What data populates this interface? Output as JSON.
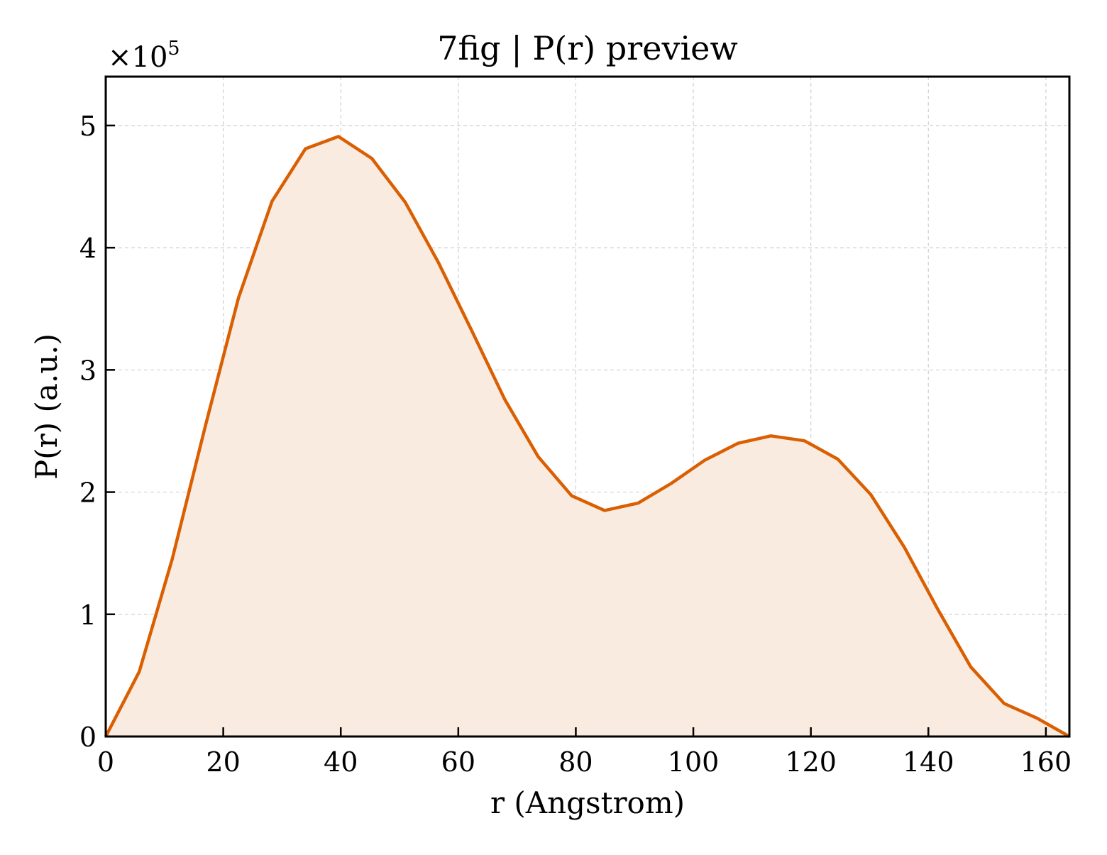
{
  "chart_data": {
    "type": "area",
    "title": "7fig | P(r) preview",
    "xlabel": "r (Angstrom)",
    "ylabel": "P(r) (a.u.)",
    "y_multiplier": "×10",
    "y_multiplier_exp": "5",
    "xlim": [
      0,
      164
    ],
    "ylim": [
      0,
      5.4
    ],
    "grid": true,
    "legend": "none",
    "xticks": [
      0,
      20,
      40,
      60,
      80,
      100,
      120,
      140,
      160
    ],
    "xtick_labels": [
      "0",
      "20",
      "40",
      "60",
      "80",
      "100",
      "120",
      "140",
      "160"
    ],
    "yticks": [
      0,
      1,
      2,
      3,
      4,
      5
    ],
    "ytick_labels": [
      "0",
      "1",
      "2",
      "3",
      "4",
      "5"
    ],
    "colors": {
      "line": "#d95f02",
      "fill": "#f9ebe0"
    },
    "series": [
      {
        "x": [
          0,
          5.7,
          11.3,
          17.0,
          22.6,
          28.3,
          34.0,
          39.6,
          45.3,
          51.0,
          56.6,
          62.3,
          67.9,
          73.6,
          79.3,
          84.9,
          90.6,
          96.2,
          101.9,
          107.6,
          113.2,
          118.9,
          124.6,
          130.2,
          135.9,
          141.5,
          147.2,
          152.9,
          158.5,
          164.0
        ],
        "y": [
          0,
          0.53,
          1.45,
          2.55,
          3.59,
          4.38,
          4.81,
          4.91,
          4.73,
          4.37,
          3.88,
          3.32,
          2.76,
          2.29,
          1.97,
          1.85,
          1.91,
          2.07,
          2.26,
          2.4,
          2.46,
          2.42,
          2.27,
          1.98,
          1.55,
          1.05,
          0.57,
          0.27,
          0.15,
          0.0
        ]
      }
    ]
  }
}
